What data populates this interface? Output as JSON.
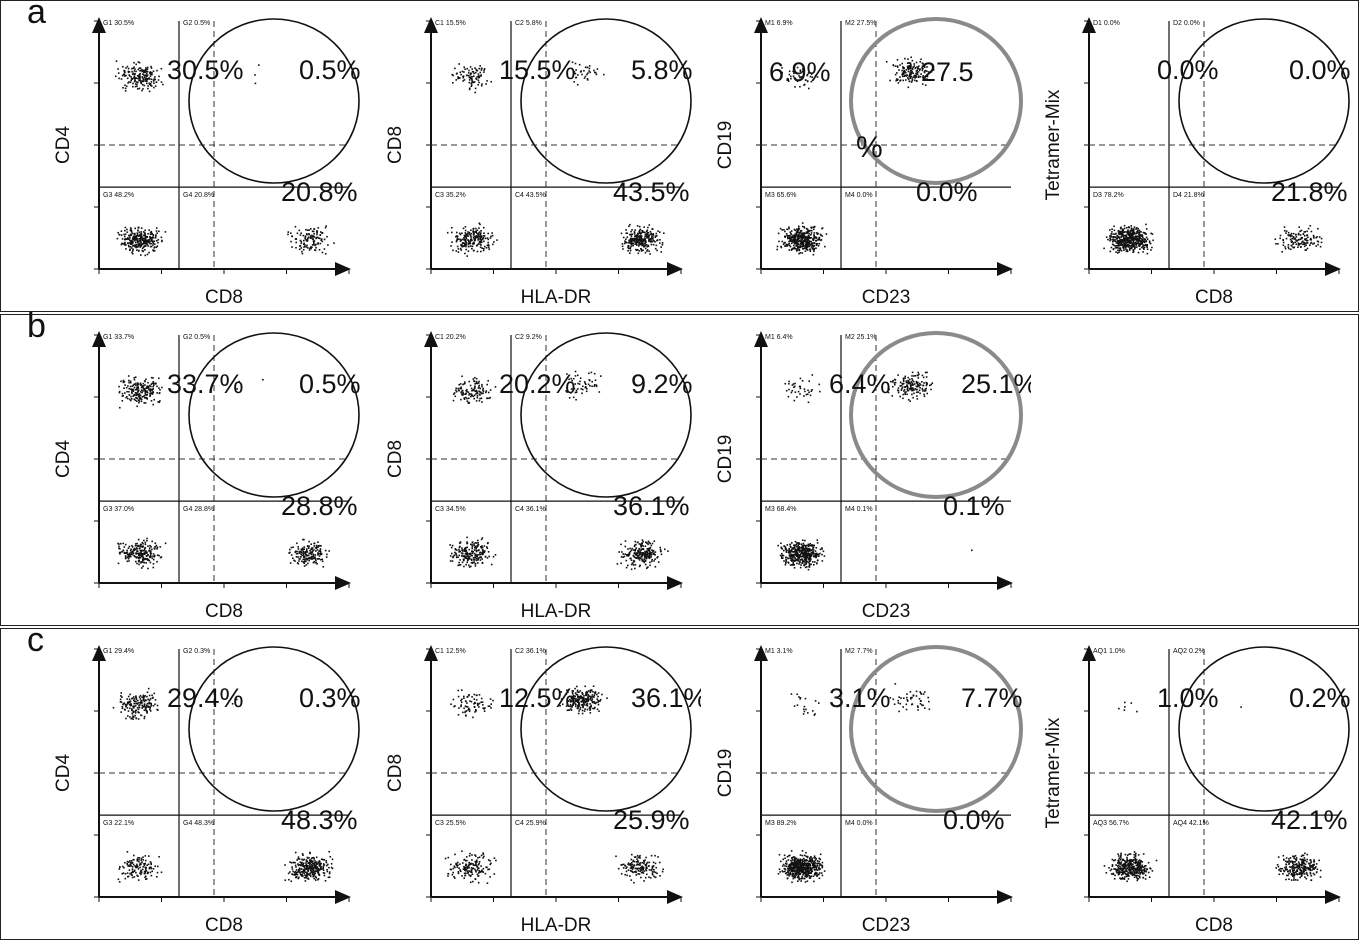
{
  "rows": [
    {
      "label": "a",
      "panels": [
        {
          "ylabel": "CD4",
          "xlabel": "CD8",
          "gates": [
            "G1 30.5%",
            "G2 0.5%",
            "G3 48.2%",
            "G4 20.8%"
          ],
          "big": [
            "30.5%",
            "0.5%",
            "20.8%"
          ]
        },
        {
          "ylabel": "CD8",
          "xlabel": "HLA-DR",
          "gates": [
            "C1 15.5%",
            "C2 5.8%",
            "C3 35.2%",
            "C4 43.5%"
          ],
          "big": [
            "15.5%",
            "5.8%",
            "43.5%"
          ]
        },
        {
          "ylabel": "CD19",
          "xlabel": "CD23",
          "gates": [
            "M1 6.9%",
            "M2 27.5%",
            "M3 65.6%",
            "M4 0.0%"
          ],
          "big": [
            "6.9%",
            "27.5",
            "%",
            "0.0%"
          ]
        },
        {
          "ylabel": "Tetramer-Mix",
          "xlabel": "CD8",
          "gates": [
            "D1 0.0%",
            "D2 0.0%",
            "D3 78.2%",
            "D4 21.8%"
          ],
          "big": [
            "0.0%",
            "0.0%",
            "21.8%"
          ]
        }
      ]
    },
    {
      "label": "b",
      "panels": [
        {
          "ylabel": "CD4",
          "xlabel": "CD8",
          "gates": [
            "G1 33.7%",
            "G2 0.5%",
            "G3 37.0%",
            "G4 28.8%"
          ],
          "big": [
            "33.7%",
            "0.5%",
            "28.8%"
          ]
        },
        {
          "ylabel": "CD8",
          "xlabel": "HLA-DR",
          "gates": [
            "C1 20.2%",
            "C2 9.2%",
            "C3 34.5%",
            "C4 36.1%"
          ],
          "big": [
            "20.2%",
            "9.2%",
            "36.1%"
          ]
        },
        {
          "ylabel": "CD19",
          "xlabel": "CD23",
          "gates": [
            "M1 6.4%",
            "M2 25.1%",
            "M3 68.4%",
            "M4 0.1%"
          ],
          "big": [
            "6.4%",
            "25.1%",
            "0.1%"
          ]
        }
      ]
    },
    {
      "label": "c",
      "panels": [
        {
          "ylabel": "CD4",
          "xlabel": "CD8",
          "gates": [
            "G1 29.4%",
            "G2 0.3%",
            "G3 22.1%",
            "G4 48.3%"
          ],
          "big": [
            "29.4%",
            "0.3%",
            "48.3%"
          ]
        },
        {
          "ylabel": "CD8",
          "xlabel": "HLA-DR",
          "gates": [
            "C1 12.5%",
            "C2 36.1%",
            "C3 25.5%",
            "C4 25.9%"
          ],
          "big": [
            "12.5%",
            "36.1%",
            "25.9%"
          ]
        },
        {
          "ylabel": "CD19",
          "xlabel": "CD23",
          "gates": [
            "M1 3.1%",
            "M2 7.7%",
            "M3 89.2%",
            "M4 0.0%"
          ],
          "big": [
            "3.1%",
            "7.7%",
            "0.0%"
          ]
        },
        {
          "ylabel": "Tetramer-Mix",
          "xlabel": "CD8",
          "gates": [
            "AQ1 1.0%",
            "AQ2 0.2%",
            "AQ3 56.7%",
            "AQ4 42.1%"
          ],
          "big": [
            "1.0%",
            "0.2%",
            "42.1%"
          ]
        }
      ]
    }
  ],
  "chart_data": {
    "type": "scatter",
    "plots": [
      {
        "row": "a",
        "x": "CD8",
        "y": "CD4",
        "quadrants": {
          "G1": 30.5,
          "G2": 0.5,
          "G3": 48.2,
          "G4": 20.8
        }
      },
      {
        "row": "a",
        "x": "HLA-DR",
        "y": "CD8",
        "quadrants": {
          "C1": 15.5,
          "C2": 5.8,
          "C3": 35.2,
          "C4": 43.5
        }
      },
      {
        "row": "a",
        "x": "CD23",
        "y": "CD19",
        "quadrants": {
          "M1": 6.9,
          "M2": 27.5,
          "M3": 65.6,
          "M4": 0.0
        }
      },
      {
        "row": "a",
        "x": "CD8",
        "y": "Tetramer-Mix",
        "quadrants": {
          "D1": 0.0,
          "D2": 0.0,
          "D3": 78.2,
          "D4": 21.8
        }
      },
      {
        "row": "b",
        "x": "CD8",
        "y": "CD4",
        "quadrants": {
          "G1": 33.7,
          "G2": 0.5,
          "G3": 37.0,
          "G4": 28.8
        }
      },
      {
        "row": "b",
        "x": "HLA-DR",
        "y": "CD8",
        "quadrants": {
          "C1": 20.2,
          "C2": 9.2,
          "C3": 34.5,
          "C4": 36.1
        }
      },
      {
        "row": "b",
        "x": "CD23",
        "y": "CD19",
        "quadrants": {
          "M1": 6.4,
          "M2": 25.1,
          "M3": 68.4,
          "M4": 0.1
        }
      },
      {
        "row": "c",
        "x": "CD8",
        "y": "CD4",
        "quadrants": {
          "G1": 29.4,
          "G2": 0.3,
          "G3": 22.1,
          "G4": 48.3
        }
      },
      {
        "row": "c",
        "x": "HLA-DR",
        "y": "CD8",
        "quadrants": {
          "C1": 12.5,
          "C2": 36.1,
          "C3": 25.5,
          "C4": 25.9
        }
      },
      {
        "row": "c",
        "x": "CD23",
        "y": "CD19",
        "quadrants": {
          "M1": 3.1,
          "M2": 7.7,
          "M3": 89.2,
          "M4": 0.0
        }
      },
      {
        "row": "c",
        "x": "CD8",
        "y": "Tetramer-Mix",
        "quadrants": {
          "AQ1": 1.0,
          "AQ2": 0.2,
          "AQ3": 56.7,
          "AQ4": 42.1
        }
      }
    ]
  }
}
